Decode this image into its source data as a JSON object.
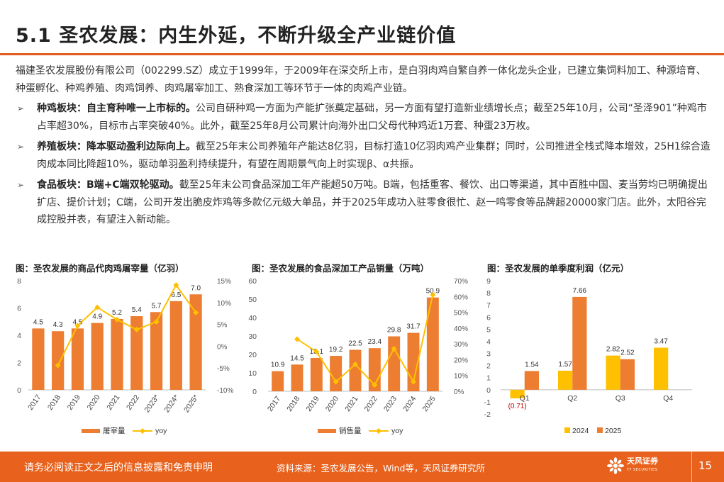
{
  "page": {
    "title": "5.1 圣农发展：内生外延，不断升级全产业链价值",
    "intro": "福建圣农发展股份有限公司（002299.SZ）成立于1999年，于2009年在深交所上市，是白羽肉鸡自繁自养一体化龙头企业，已建立集饲料加工、种源培育、种蛋孵化、种鸡养殖、肉鸡饲养、肉鸡屠宰加工、熟食深加工等环节于一体的肉鸡产业链。",
    "bullet_marker": "➢",
    "bullets": [
      {
        "head": "种鸡板块：自主育种唯一上市标的。",
        "text": "公司自研种鸡一方面为产能扩张奠定基础，另一方面有望打造新业绩增长点；截至25年10月，公司“圣泽901”种鸡市占率超30%，目标市占率突破40%。此外，截至25年8月公司累计向海外出口父母代种鸡近1万套、种蛋23万枚。"
      },
      {
        "head": "养殖板块：降本驱动盈利边际向上。",
        "text": "截至25年末公司养殖年产能达8亿羽，目标打造10亿羽肉鸡产业集群；同时，公司推进全栈式降本增效，25H1综合造肉成本同比降超10%，驱动单羽盈利持续提升，有望在周期景气向上时实现β、α共振。"
      },
      {
        "head": "食品板块：B端+C端双轮驱动。",
        "text": "截至25年末公司食品深加工年产能超50万吨。B端，包括重客、餐饮、出口等渠道，其中百胜中国、麦当劳均已明确提出扩店、提价计划；C端，公司开发出脆皮炸鸡等多款亿元级大单品，并于2025年成功入驻零食很忙、赵一鸣零食等品牌超20000家门店。此外，太阳谷完成控股并表，有望注入新动能。"
      }
    ],
    "footer": {
      "disclaimer": "请务必阅读正文之后的信息披露和免责申明",
      "source": "资料来源：圣农发展公告，Wind等，天风证券研究所",
      "logo_text": "天风证券",
      "logo_sub": "TF SECURITIES",
      "page_number": "15"
    }
  },
  "colors": {
    "accent": "#e8621d",
    "bar": "#ed7d31",
    "line": "#ffc000",
    "bar2024": "#ffc000",
    "bar2025": "#ed7d31"
  },
  "chart_data": [
    {
      "type": "bar",
      "title": "图：圣农发展的商品代肉鸡屠宰量（亿羽）",
      "categories": [
        "2017",
        "2018",
        "2019",
        "2020",
        "2021",
        "2022",
        "2023*",
        "2024*",
        "2025*"
      ],
      "series": [
        {
          "name": "屠宰量",
          "kind": "bar",
          "axis": "left",
          "values": [
            4.5,
            4.3,
            4.5,
            4.9,
            5.2,
            5.4,
            5.7,
            6.5,
            7.0
          ],
          "labels": [
            "4.5",
            "4.3",
            "4.5",
            "4.9",
            "5.2",
            "5.4",
            "5.7",
            "6.5",
            "7.0"
          ]
        },
        {
          "name": "yoy",
          "kind": "line",
          "axis": "right",
          "values": [
            null,
            -4.4,
            4.7,
            8.9,
            6.1,
            3.8,
            5.6,
            14.0,
            7.7
          ]
        }
      ],
      "ylim": [
        0,
        8
      ],
      "yticks": [
        0,
        2,
        4,
        6,
        8
      ],
      "ytick_labels": [
        "0",
        "2",
        "4",
        "6",
        "8"
      ],
      "y2lim": [
        -10,
        15
      ],
      "y2ticks": [
        -10,
        -5,
        0,
        5,
        10,
        15
      ],
      "y2tick_labels": [
        "-10%",
        "-5%",
        "0%",
        "5%",
        "10%",
        "15%"
      ]
    },
    {
      "type": "bar",
      "title": "图：圣农发展的食品深加工产品销量（万吨）",
      "categories": [
        "2017",
        "2018",
        "2019",
        "2020",
        "2021",
        "2022",
        "2023",
        "2024",
        "2025"
      ],
      "series": [
        {
          "name": "销售量",
          "kind": "bar",
          "axis": "left",
          "values": [
            10.9,
            14.5,
            18.1,
            19.2,
            22.5,
            23.4,
            29.8,
            31.7,
            50.9
          ],
          "labels": [
            "10.9",
            "14.5",
            "18.1",
            "19.2",
            "22.5",
            "23.4",
            "29.8",
            "31.7",
            "50.9"
          ]
        },
        {
          "name": "yoy",
          "kind": "line",
          "axis": "right",
          "values": [
            null,
            33,
            25,
            6,
            17,
            4,
            27,
            6,
            61
          ]
        }
      ],
      "ylim": [
        0,
        60
      ],
      "yticks": [
        0,
        10,
        20,
        30,
        40,
        50,
        60
      ],
      "ytick_labels": [
        "0",
        "10",
        "20",
        "30",
        "40",
        "50",
        "60"
      ],
      "y2lim": [
        0,
        70
      ],
      "y2ticks": [
        0,
        10,
        20,
        30,
        40,
        50,
        60,
        70
      ],
      "y2tick_labels": [
        "0%",
        "10%",
        "20%",
        "30%",
        "40%",
        "50%",
        "60%",
        "70%"
      ]
    },
    {
      "type": "bar",
      "title": "图：圣农发展的单季度利润（亿元）",
      "categories": [
        "Q1",
        "Q2",
        "Q3",
        "Q4"
      ],
      "series": [
        {
          "name": "2024",
          "kind": "bar",
          "values": [
            -0.71,
            1.57,
            2.82,
            3.47
          ],
          "labels": [
            "(0.71)",
            "1.57",
            "2.82",
            "3.47"
          ]
        },
        {
          "name": "2025",
          "kind": "bar",
          "values": [
            1.54,
            7.66,
            2.52,
            null
          ],
          "labels": [
            "1.54",
            "7.66",
            "2.52",
            ""
          ]
        }
      ],
      "ylim": [
        -2,
        9
      ],
      "yticks": [
        -2,
        -1,
        0,
        1,
        2,
        3,
        4,
        5,
        6,
        7,
        8,
        9
      ],
      "ytick_labels": [
        "-2",
        "-1",
        "0",
        "1",
        "2",
        "3",
        "4",
        "5",
        "6",
        "7",
        "8",
        "9"
      ]
    }
  ]
}
